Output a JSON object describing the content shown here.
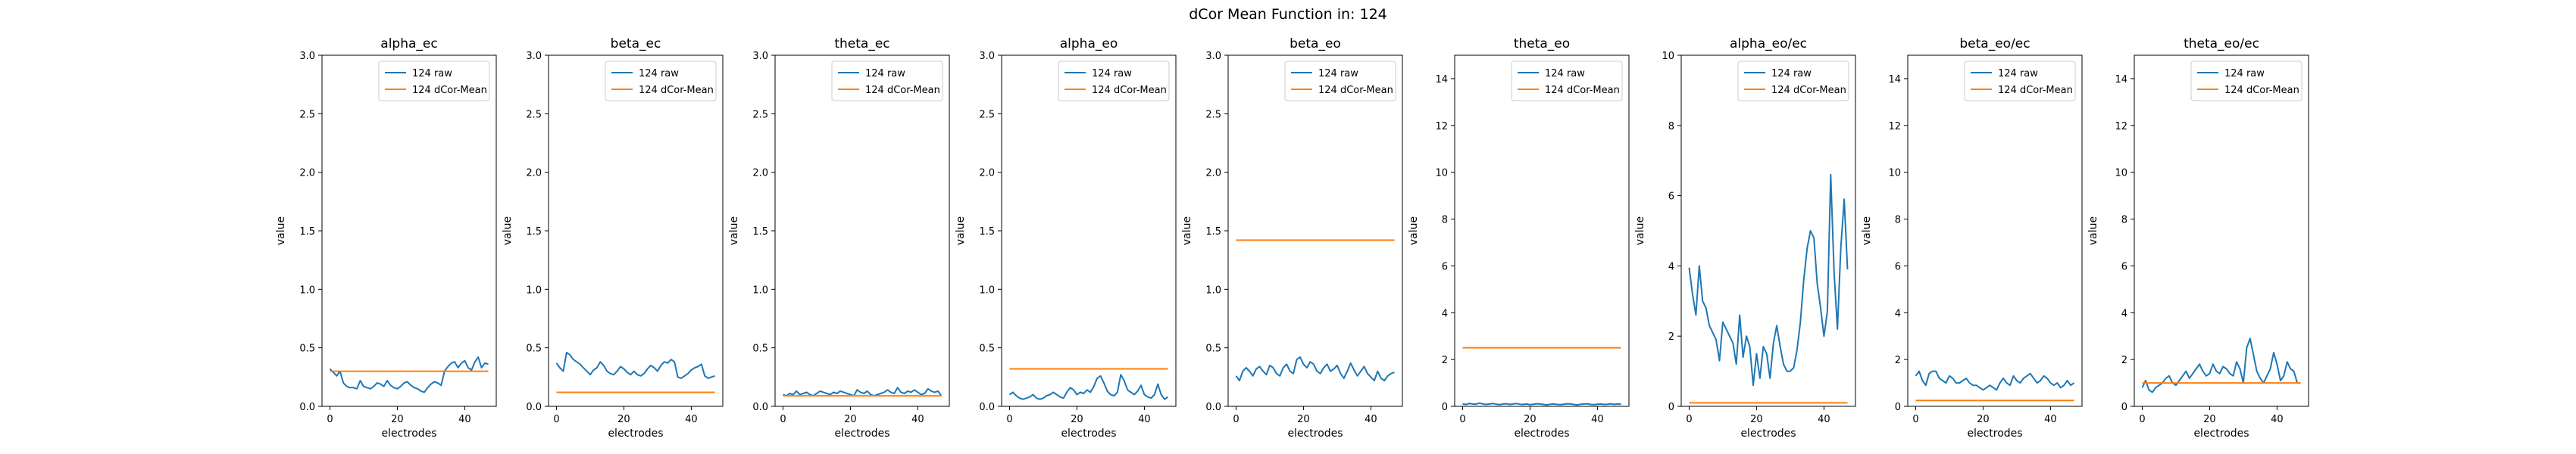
{
  "figure": {
    "title": "dCor Mean Function in: 124"
  },
  "colors": {
    "raw": "#1f77b4",
    "mean": "#ff7f0e",
    "axis": "#000000"
  },
  "chart_data": [
    {
      "type": "line",
      "title": "alpha_ec",
      "xlabel": "electrodes",
      "ylabel": "value",
      "xlim": [
        -2.35,
        49.35
      ],
      "ylim": [
        0,
        3.0
      ],
      "xticks": [
        0,
        20,
        40
      ],
      "yticks": [
        0.0,
        0.5,
        1.0,
        1.5,
        2.0,
        2.5,
        3.0
      ],
      "ytick_decimals": 1,
      "legend_position": "upper right",
      "series": [
        {
          "name": "124 raw",
          "color": "#1f77b4",
          "values": [
            0.32,
            0.29,
            0.26,
            0.3,
            0.2,
            0.17,
            0.16,
            0.16,
            0.15,
            0.22,
            0.17,
            0.16,
            0.15,
            0.17,
            0.2,
            0.19,
            0.17,
            0.22,
            0.18,
            0.16,
            0.15,
            0.17,
            0.2,
            0.21,
            0.18,
            0.16,
            0.15,
            0.13,
            0.12,
            0.16,
            0.19,
            0.21,
            0.2,
            0.18,
            0.3,
            0.34,
            0.37,
            0.38,
            0.33,
            0.37,
            0.39,
            0.33,
            0.31,
            0.38,
            0.42,
            0.33,
            0.37,
            0.36
          ]
        },
        {
          "name": "124 dCor-Mean",
          "color": "#ff7f0e",
          "constant": 0.3
        }
      ]
    },
    {
      "type": "line",
      "title": "beta_ec",
      "xlabel": "electrodes",
      "ylabel": "value",
      "xlim": [
        -2.35,
        49.35
      ],
      "ylim": [
        0,
        3.0
      ],
      "xticks": [
        0,
        20,
        40
      ],
      "yticks": [
        0.0,
        0.5,
        1.0,
        1.5,
        2.0,
        2.5,
        3.0
      ],
      "ytick_decimals": 1,
      "legend_position": "upper right",
      "series": [
        {
          "name": "124 raw",
          "color": "#1f77b4",
          "values": [
            0.37,
            0.33,
            0.3,
            0.46,
            0.44,
            0.4,
            0.38,
            0.36,
            0.33,
            0.3,
            0.27,
            0.31,
            0.33,
            0.38,
            0.35,
            0.3,
            0.28,
            0.27,
            0.3,
            0.34,
            0.32,
            0.29,
            0.27,
            0.3,
            0.27,
            0.26,
            0.28,
            0.32,
            0.35,
            0.33,
            0.3,
            0.35,
            0.38,
            0.37,
            0.4,
            0.38,
            0.25,
            0.24,
            0.26,
            0.28,
            0.31,
            0.33,
            0.34,
            0.36,
            0.26,
            0.24,
            0.25,
            0.26
          ]
        },
        {
          "name": "124 dCor-Mean",
          "color": "#ff7f0e",
          "constant": 0.12
        }
      ]
    },
    {
      "type": "line",
      "title": "theta_ec",
      "xlabel": "electrodes",
      "ylabel": "value",
      "xlim": [
        -2.35,
        49.35
      ],
      "ylim": [
        0,
        3.0
      ],
      "xticks": [
        0,
        20,
        40
      ],
      "yticks": [
        0.0,
        0.5,
        1.0,
        1.5,
        2.0,
        2.5,
        3.0
      ],
      "ytick_decimals": 1,
      "legend_position": "upper right",
      "series": [
        {
          "name": "124 raw",
          "color": "#1f77b4",
          "values": [
            0.1,
            0.09,
            0.11,
            0.1,
            0.13,
            0.1,
            0.11,
            0.12,
            0.1,
            0.09,
            0.11,
            0.13,
            0.12,
            0.11,
            0.1,
            0.12,
            0.11,
            0.13,
            0.12,
            0.11,
            0.1,
            0.09,
            0.14,
            0.12,
            0.11,
            0.13,
            0.1,
            0.09,
            0.1,
            0.11,
            0.12,
            0.14,
            0.12,
            0.11,
            0.16,
            0.12,
            0.11,
            0.13,
            0.12,
            0.14,
            0.12,
            0.1,
            0.11,
            0.15,
            0.13,
            0.12,
            0.13,
            0.09
          ]
        },
        {
          "name": "124 dCor-Mean",
          "color": "#ff7f0e",
          "constant": 0.09
        }
      ]
    },
    {
      "type": "line",
      "title": "alpha_eo",
      "xlabel": "electrodes",
      "ylabel": "value",
      "xlim": [
        -2.35,
        49.35
      ],
      "ylim": [
        0,
        3.0
      ],
      "xticks": [
        0,
        20,
        40
      ],
      "yticks": [
        0.0,
        0.5,
        1.0,
        1.5,
        2.0,
        2.5,
        3.0
      ],
      "ytick_decimals": 1,
      "legend_position": "upper right",
      "series": [
        {
          "name": "124 raw",
          "color": "#1f77b4",
          "values": [
            0.1,
            0.12,
            0.09,
            0.07,
            0.06,
            0.07,
            0.08,
            0.1,
            0.07,
            0.06,
            0.07,
            0.09,
            0.1,
            0.12,
            0.1,
            0.08,
            0.07,
            0.12,
            0.16,
            0.14,
            0.1,
            0.12,
            0.11,
            0.14,
            0.12,
            0.17,
            0.24,
            0.26,
            0.2,
            0.13,
            0.1,
            0.09,
            0.12,
            0.27,
            0.22,
            0.14,
            0.12,
            0.1,
            0.13,
            0.18,
            0.1,
            0.08,
            0.07,
            0.1,
            0.19,
            0.1,
            0.06,
            0.08
          ]
        },
        {
          "name": "124 dCor-Mean",
          "color": "#ff7f0e",
          "constant": 0.32
        }
      ]
    },
    {
      "type": "line",
      "title": "beta_eo",
      "xlabel": "electrodes",
      "ylabel": "value",
      "xlim": [
        -2.35,
        49.35
      ],
      "ylim": [
        0,
        3.0
      ],
      "xticks": [
        0,
        20,
        40
      ],
      "yticks": [
        0.0,
        0.5,
        1.0,
        1.5,
        2.0,
        2.5,
        3.0
      ],
      "ytick_decimals": 1,
      "legend_position": "upper right",
      "series": [
        {
          "name": "124 raw",
          "color": "#1f77b4",
          "values": [
            0.26,
            0.22,
            0.3,
            0.33,
            0.3,
            0.26,
            0.32,
            0.34,
            0.3,
            0.27,
            0.35,
            0.33,
            0.28,
            0.26,
            0.33,
            0.36,
            0.3,
            0.28,
            0.4,
            0.42,
            0.36,
            0.33,
            0.38,
            0.36,
            0.3,
            0.28,
            0.33,
            0.36,
            0.3,
            0.32,
            0.35,
            0.28,
            0.24,
            0.3,
            0.37,
            0.31,
            0.26,
            0.3,
            0.34,
            0.28,
            0.25,
            0.22,
            0.3,
            0.24,
            0.22,
            0.26,
            0.28,
            0.29
          ]
        },
        {
          "name": "124 dCor-Mean",
          "color": "#ff7f0e",
          "constant": 1.42
        }
      ]
    },
    {
      "type": "line",
      "title": "theta_eo",
      "xlabel": "electrodes",
      "ylabel": "value",
      "xlim": [
        -2.35,
        49.35
      ],
      "ylim": [
        0,
        15
      ],
      "xticks": [
        0,
        20,
        40
      ],
      "yticks": [
        0,
        2,
        4,
        6,
        8,
        10,
        12,
        14
      ],
      "ytick_decimals": 0,
      "legend_position": "upper right",
      "series": [
        {
          "name": "124 raw",
          "color": "#1f77b4",
          "values": [
            0.1,
            0.08,
            0.12,
            0.1,
            0.09,
            0.14,
            0.1,
            0.08,
            0.1,
            0.12,
            0.09,
            0.07,
            0.1,
            0.11,
            0.08,
            0.1,
            0.12,
            0.09,
            0.08,
            0.1,
            0.07,
            0.09,
            0.11,
            0.1,
            0.08,
            0.06,
            0.09,
            0.1,
            0.08,
            0.07,
            0.09,
            0.11,
            0.1,
            0.08,
            0.06,
            0.09,
            0.1,
            0.11,
            0.08,
            0.07,
            0.09,
            0.1,
            0.08,
            0.09,
            0.11,
            0.08,
            0.1,
            0.09
          ]
        },
        {
          "name": "124 dCor-Mean",
          "color": "#ff7f0e",
          "constant": 2.5
        }
      ]
    },
    {
      "type": "line",
      "title": "alpha_eo/ec",
      "xlabel": "electrodes",
      "ylabel": "value",
      "xlim": [
        -2.35,
        49.35
      ],
      "ylim": [
        0,
        10
      ],
      "xticks": [
        0,
        20,
        40
      ],
      "yticks": [
        0,
        2,
        4,
        6,
        8,
        10
      ],
      "ytick_decimals": 0,
      "legend_position": "upper right",
      "series": [
        {
          "name": "124 raw",
          "color": "#1f77b4",
          "values": [
            3.95,
            3.2,
            2.6,
            4.0,
            3.0,
            2.8,
            2.3,
            2.1,
            1.9,
            1.3,
            2.4,
            2.2,
            2.0,
            1.8,
            1.2,
            2.6,
            1.4,
            2.0,
            1.7,
            0.6,
            1.5,
            0.8,
            1.7,
            1.5,
            0.8,
            1.8,
            2.3,
            1.7,
            1.2,
            1.0,
            1.0,
            1.1,
            1.6,
            2.4,
            3.6,
            4.5,
            5.0,
            4.8,
            3.5,
            2.8,
            2.0,
            2.7,
            6.6,
            3.8,
            2.2,
            4.5,
            5.9,
            3.9
          ]
        },
        {
          "name": "124 dCor-Mean",
          "color": "#ff7f0e",
          "constant": 0.1
        }
      ]
    },
    {
      "type": "line",
      "title": "beta_eo/ec",
      "xlabel": "electrodes",
      "ylabel": "value",
      "xlim": [
        -2.35,
        49.35
      ],
      "ylim": [
        0,
        15
      ],
      "xticks": [
        0,
        20,
        40
      ],
      "yticks": [
        0,
        2,
        4,
        6,
        8,
        10,
        12,
        14
      ],
      "ytick_decimals": 0,
      "legend_position": "upper right",
      "series": [
        {
          "name": "124 raw",
          "color": "#1f77b4",
          "values": [
            1.3,
            1.5,
            1.1,
            0.9,
            1.4,
            1.5,
            1.5,
            1.2,
            1.1,
            1.0,
            1.3,
            1.2,
            1.0,
            1.0,
            1.1,
            1.2,
            1.0,
            0.9,
            0.9,
            0.8,
            0.7,
            0.8,
            0.9,
            0.8,
            0.7,
            1.0,
            1.2,
            1.0,
            0.9,
            1.3,
            1.1,
            1.0,
            1.2,
            1.3,
            1.4,
            1.2,
            1.0,
            1.1,
            1.3,
            1.2,
            1.0,
            0.9,
            1.0,
            0.8,
            0.9,
            1.1,
            0.9,
            1.0
          ]
        },
        {
          "name": "124 dCor-Mean",
          "color": "#ff7f0e",
          "constant": 0.25
        }
      ]
    },
    {
      "type": "line",
      "title": "theta_eo/ec",
      "xlabel": "electrodes",
      "ylabel": "value",
      "xlim": [
        -2.35,
        49.35
      ],
      "ylim": [
        0,
        15
      ],
      "xticks": [
        0,
        20,
        40
      ],
      "yticks": [
        0,
        2,
        4,
        6,
        8,
        10,
        12,
        14
      ],
      "ytick_decimals": 0,
      "legend_position": "upper right",
      "series": [
        {
          "name": "124 raw",
          "color": "#1f77b4",
          "values": [
            0.8,
            1.1,
            0.7,
            0.6,
            0.8,
            0.9,
            1.0,
            1.2,
            1.3,
            1.0,
            0.9,
            1.1,
            1.3,
            1.5,
            1.2,
            1.4,
            1.6,
            1.8,
            1.5,
            1.3,
            1.4,
            1.8,
            1.5,
            1.4,
            1.7,
            1.6,
            1.4,
            1.3,
            1.9,
            1.6,
            1.0,
            2.5,
            2.9,
            2.2,
            1.5,
            1.2,
            1.0,
            1.3,
            1.6,
            2.3,
            1.8,
            1.1,
            1.3,
            1.9,
            1.6,
            1.5,
            1.0,
            1.0
          ]
        },
        {
          "name": "124 dCor-Mean",
          "color": "#ff7f0e",
          "constant": 1.0
        }
      ]
    }
  ]
}
